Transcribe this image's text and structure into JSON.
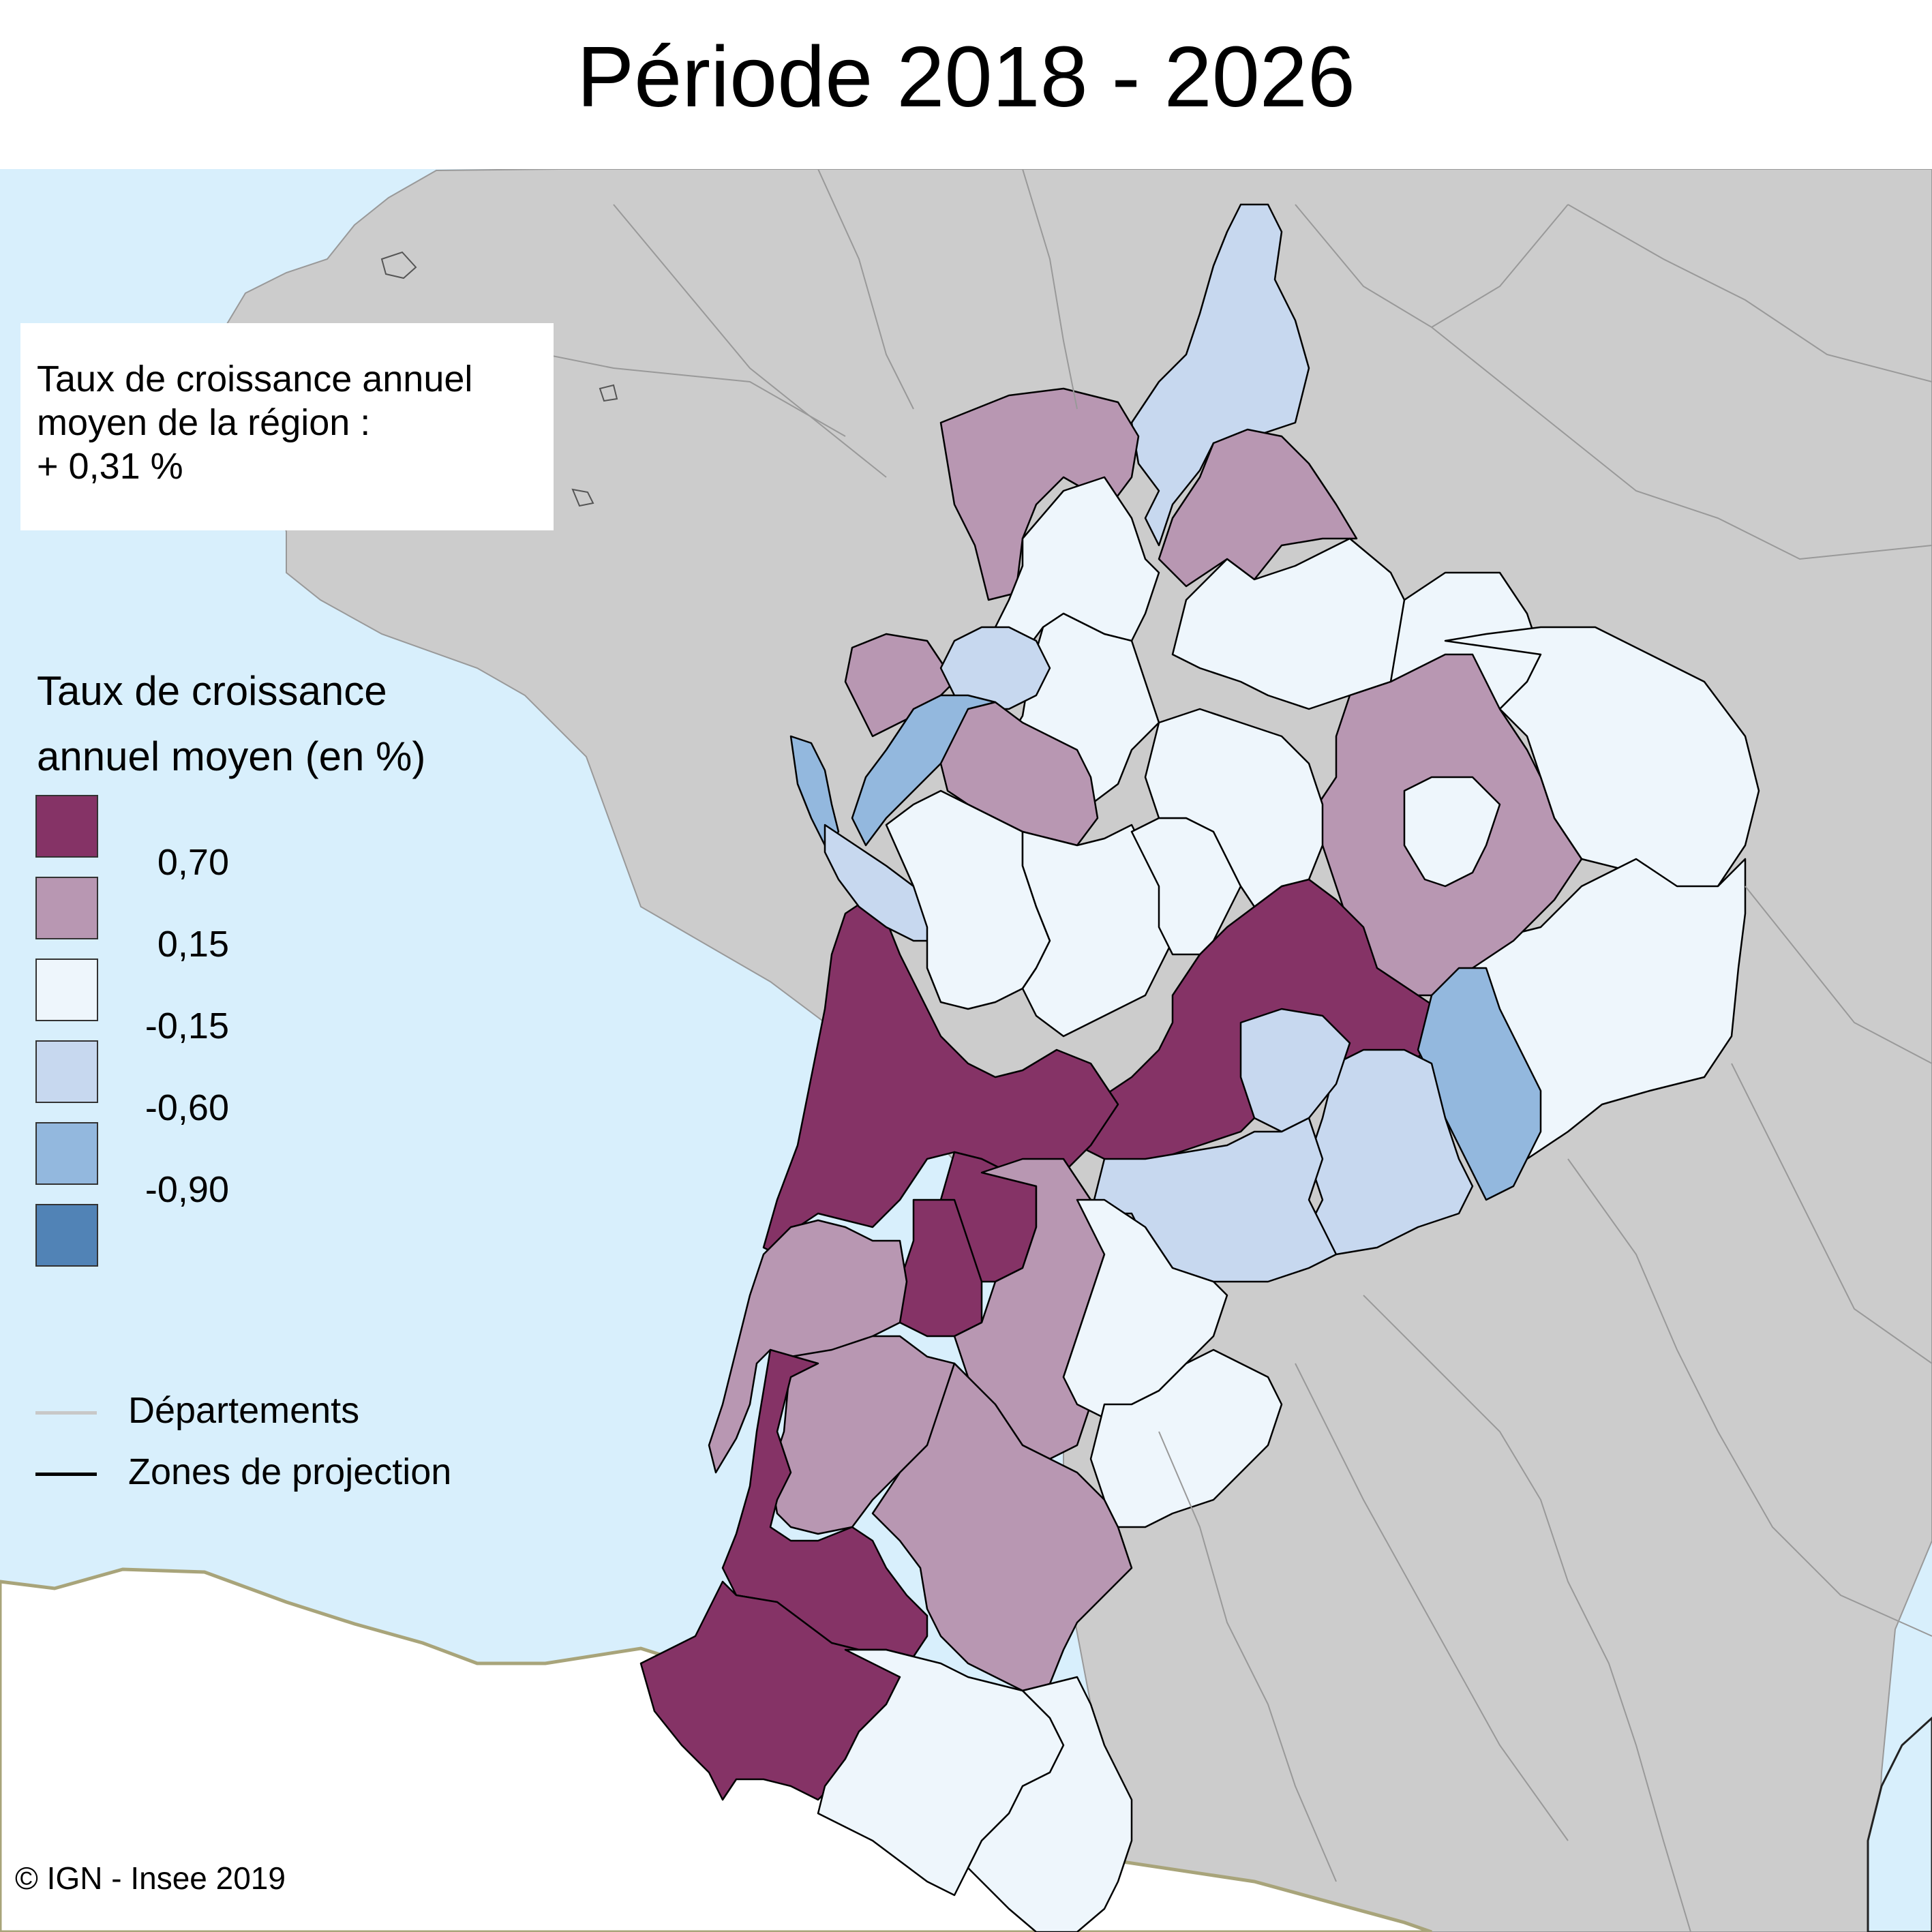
{
  "title": "Période 2018 - 2026",
  "regional_box": {
    "line1": "Taux de croissance annuel",
    "line2": "moyen de la région :",
    "line3": "+ 0,31 %"
  },
  "legend": {
    "title_line1": "Taux de croissance",
    "title_line2": "annuel moyen (en %)",
    "classes": [
      {
        "color": "#853366",
        "label": "≥ 0,70"
      },
      {
        "color": "#b897b2",
        "label": "0,15 – 0,70"
      },
      {
        "color": "#eef6fc",
        "label": "-0,15 – 0,15"
      },
      {
        "color": "#c7d8ef",
        "label": "-0,60 – -0,15"
      },
      {
        "color": "#93b8de",
        "label": "-0,90 – -0,60"
      },
      {
        "color": "#5183b6",
        "label": "< -0,90"
      }
    ],
    "breaks": [
      "0,70",
      "0,15",
      "-0,15",
      "-0,60",
      "-0,90"
    ],
    "lines": [
      {
        "label": "Départements",
        "color": "#c8c8c8"
      },
      {
        "label": "Zones de projection",
        "color": "#000000"
      }
    ]
  },
  "map_colors": {
    "sea": "#d8effc",
    "outside_france": "#cccccc",
    "spain": "#ffffff",
    "coast_border": "#a8a47a"
  },
  "credit": "© IGN - Insee 2019"
}
